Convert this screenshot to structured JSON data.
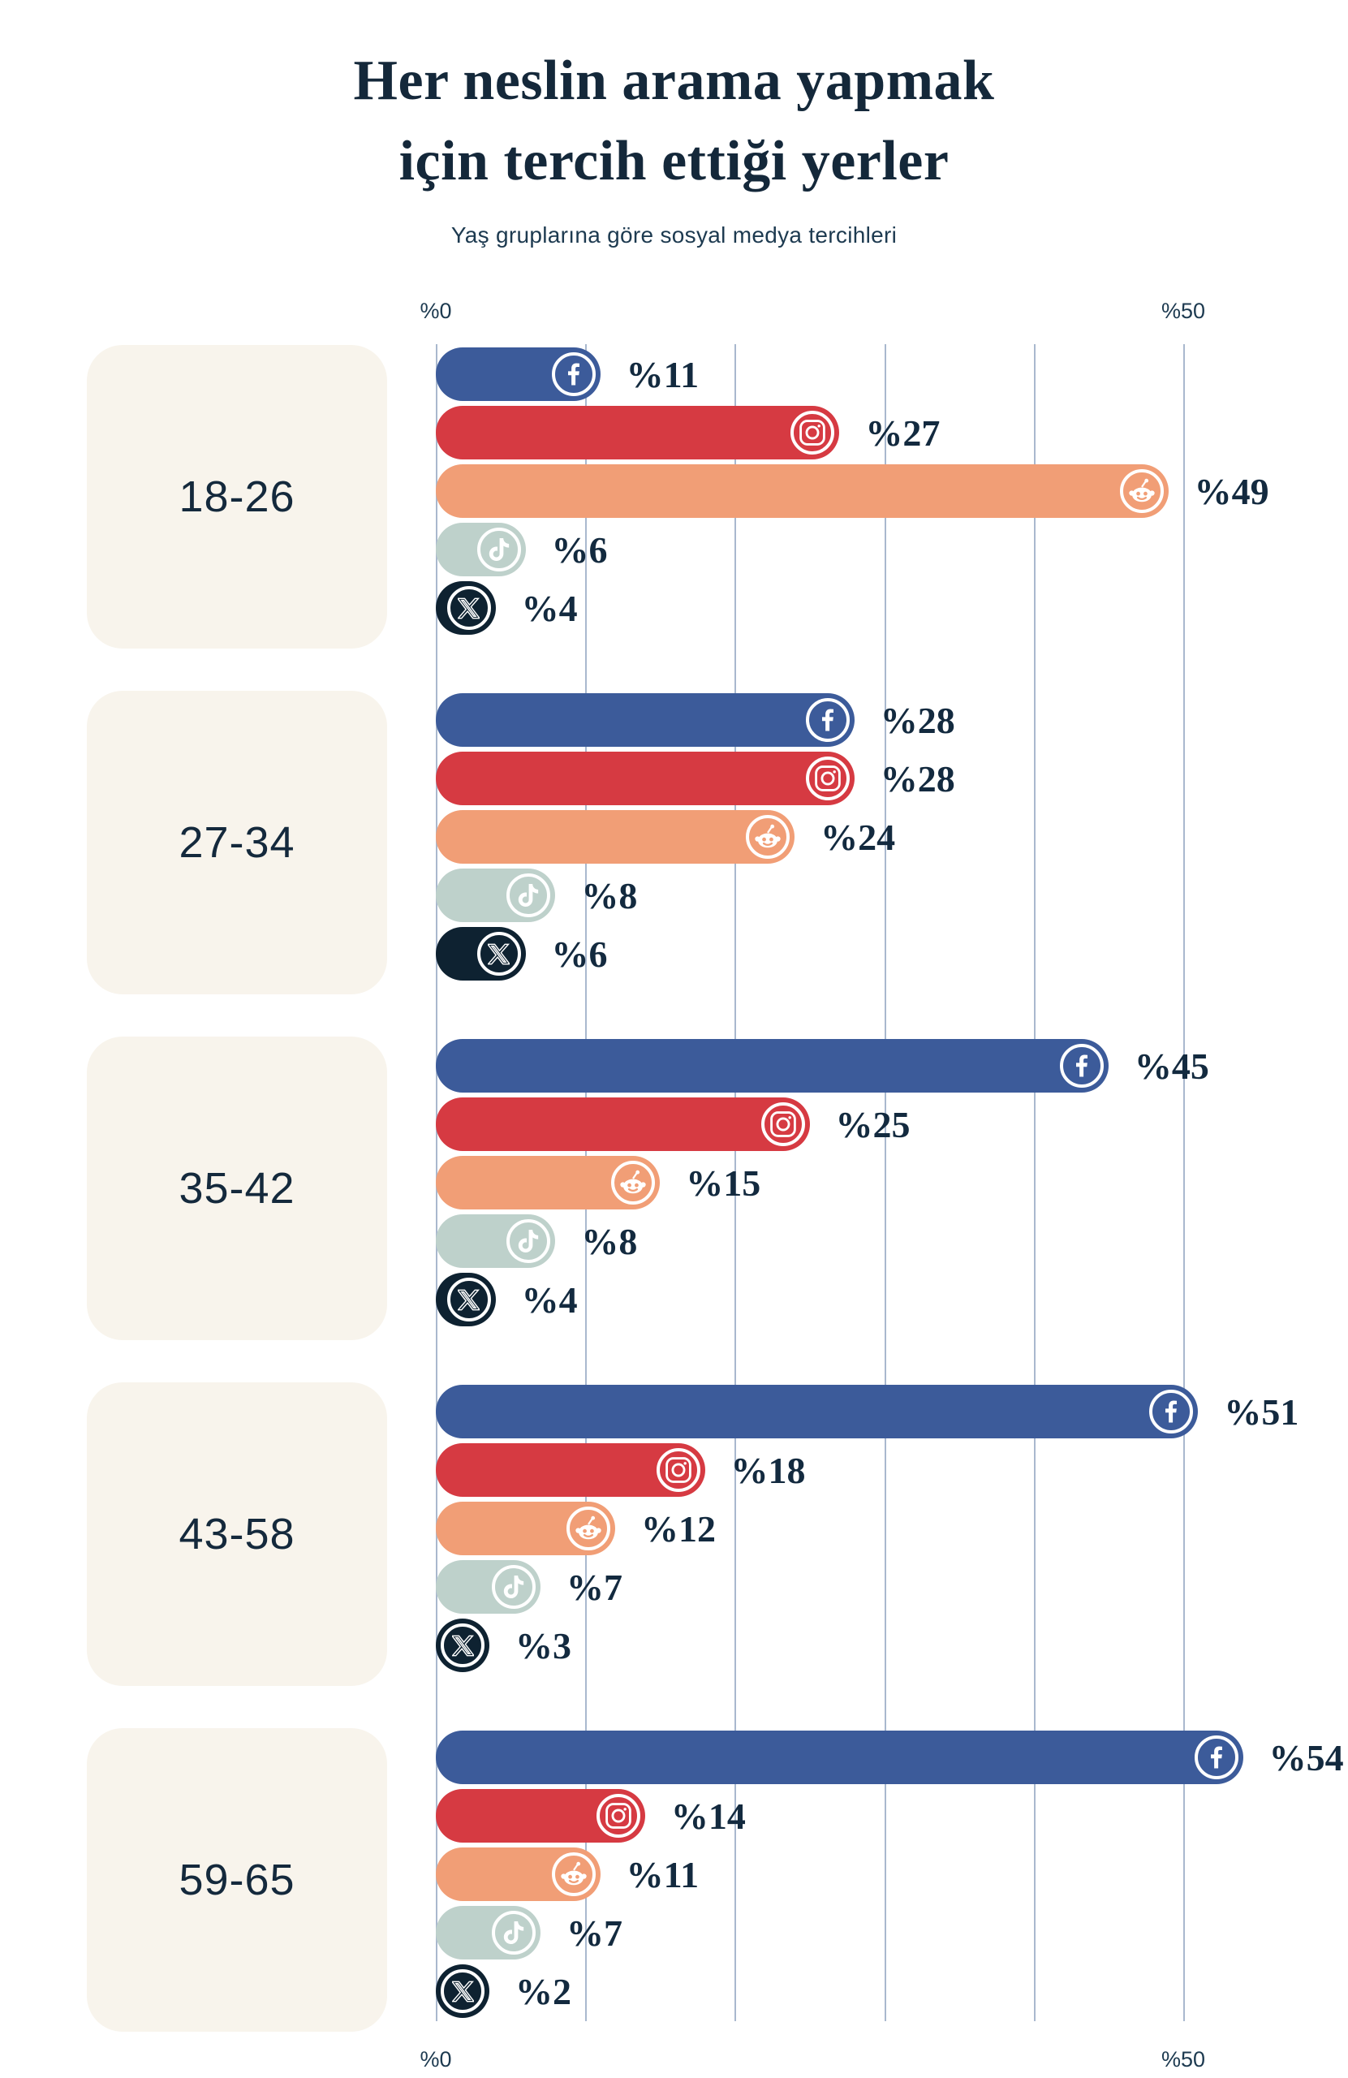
{
  "title": {
    "line1": "Her neslin arama yapmak",
    "line2": "için tercih ettiği yerler"
  },
  "subtitle": "Yaş gruplarına göre sosyal medya tercihleri",
  "axis": {
    "min": 0,
    "max": 50,
    "min_label": "%0",
    "max_label": "%50",
    "gridline_percents": [
      0,
      10,
      20,
      30,
      40,
      50
    ],
    "labels_shown_top_and_bottom": true
  },
  "colors": {
    "background": "#ffffff",
    "title": "#14283a",
    "subtitle": "#1d3a50",
    "axis_label": "#1d3a50",
    "value_label": "#132a3f",
    "age_label": "#14293c",
    "card": "#f8f4ec",
    "gridline": "#a9b8ce",
    "icon_ring": "#ffffff"
  },
  "chart_data": {
    "type": "bar",
    "orientation": "horizontal",
    "title": "Her neslin arama yapmak için tercih ettiği yerler",
    "subtitle": "Yaş gruplarına göre sosyal medya tercihleri",
    "x_axis": {
      "min": 0,
      "max": 50,
      "unit": "percent",
      "tick_labels": [
        "%0",
        "%50"
      ]
    },
    "grid": true,
    "legend": "none",
    "categories": [
      "18-26",
      "27-34",
      "35-42",
      "43-58",
      "59-65"
    ],
    "series": [
      {
        "name": "Facebook",
        "platform": "facebook",
        "icon": "facebook-icon",
        "color": "#3c5b9a",
        "values": [
          11,
          28,
          45,
          51,
          54
        ],
        "labels": [
          "%11",
          "%28",
          "%45",
          "%51",
          "%54"
        ]
      },
      {
        "name": "Instagram",
        "platform": "instagram",
        "icon": "instagram-icon",
        "color": "#d63a42",
        "values": [
          27,
          28,
          25,
          18,
          14
        ],
        "labels": [
          "%27",
          "%28",
          "%25",
          "%18",
          "%14"
        ]
      },
      {
        "name": "Reddit",
        "platform": "reddit",
        "icon": "reddit-icon",
        "color": "#f19e76",
        "values": [
          49,
          24,
          15,
          12,
          11
        ],
        "labels": [
          "%49",
          "%24",
          "%15",
          "%12",
          "%11"
        ]
      },
      {
        "name": "TikTok",
        "platform": "tiktok",
        "icon": "tiktok-icon",
        "color": "#bed1cb",
        "values": [
          6,
          8,
          8,
          7,
          7
        ],
        "labels": [
          "%6",
          "%8",
          "%8",
          "%7",
          "%7"
        ]
      },
      {
        "name": "X",
        "platform": "x",
        "icon": "x-icon",
        "color": "#0e2231",
        "values": [
          4,
          6,
          4,
          3,
          2
        ],
        "labels": [
          "%4",
          "%6",
          "%4",
          "%3",
          "%2"
        ]
      }
    ]
  }
}
